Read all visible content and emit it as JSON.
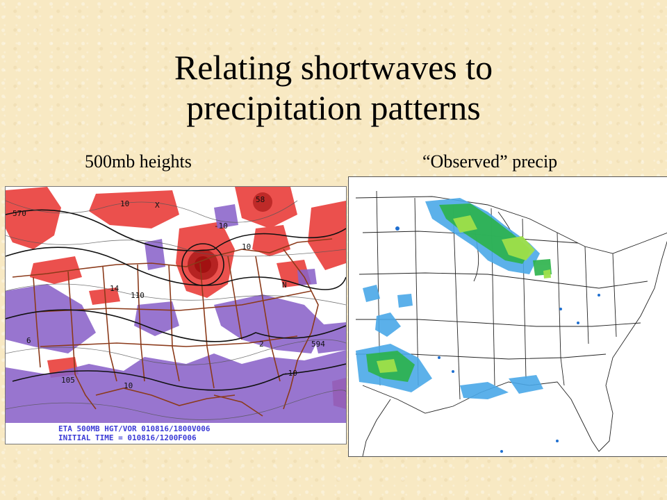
{
  "slide": {
    "title_line1": "Relating shortwaves to",
    "title_line2": "precipitation patterns"
  },
  "left_panel": {
    "caption": "500mb heights",
    "footer_line1": "ETA 500MB HGT/VOR 010816/1800V006",
    "footer_line2": "INITIAL TIME = 010816/1200F006",
    "contour_labels": [
      "570",
      "10",
      "-10",
      "10",
      "14",
      "110",
      "10",
      "58",
      "105",
      "594",
      "-10",
      "N",
      "X",
      "6",
      "2"
    ]
  },
  "right_panel": {
    "caption": "“Observed” precip"
  },
  "colors": {
    "background": "#f8e9c3",
    "positive_vorticity": "#e8322e",
    "negative_vorticity": "#8a63c9",
    "borders": "#8b3a1a",
    "footer_text": "#3b3bd6",
    "precip_light": "#4aa8e8",
    "precip_medium": "#2bb24a",
    "precip_heavy": "#9fe04a"
  }
}
